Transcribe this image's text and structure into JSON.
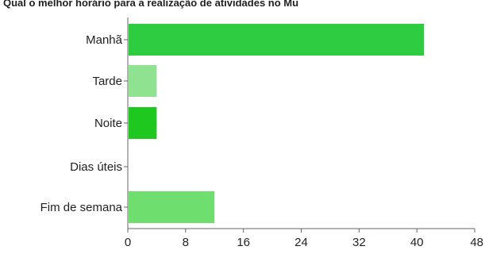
{
  "chart_data": {
    "type": "bar",
    "orientation": "horizontal",
    "title": "Qual o melhor horário para a realização de atividades no Mu",
    "categories": [
      "Manhã",
      "Tarde",
      "Noite",
      "Dias úteis",
      "Fim de semana"
    ],
    "values": [
      41,
      4,
      4,
      0,
      12
    ],
    "bar_colors": [
      "#2ecc40",
      "#8fe28f",
      "#1ec81e",
      "#2ecc40",
      "#6ede6e"
    ],
    "xlim": [
      0,
      48
    ],
    "xticks": [
      0,
      8,
      16,
      24,
      32,
      40,
      48
    ],
    "xlabel": "",
    "ylabel": "",
    "grid": false,
    "legend": "none"
  }
}
